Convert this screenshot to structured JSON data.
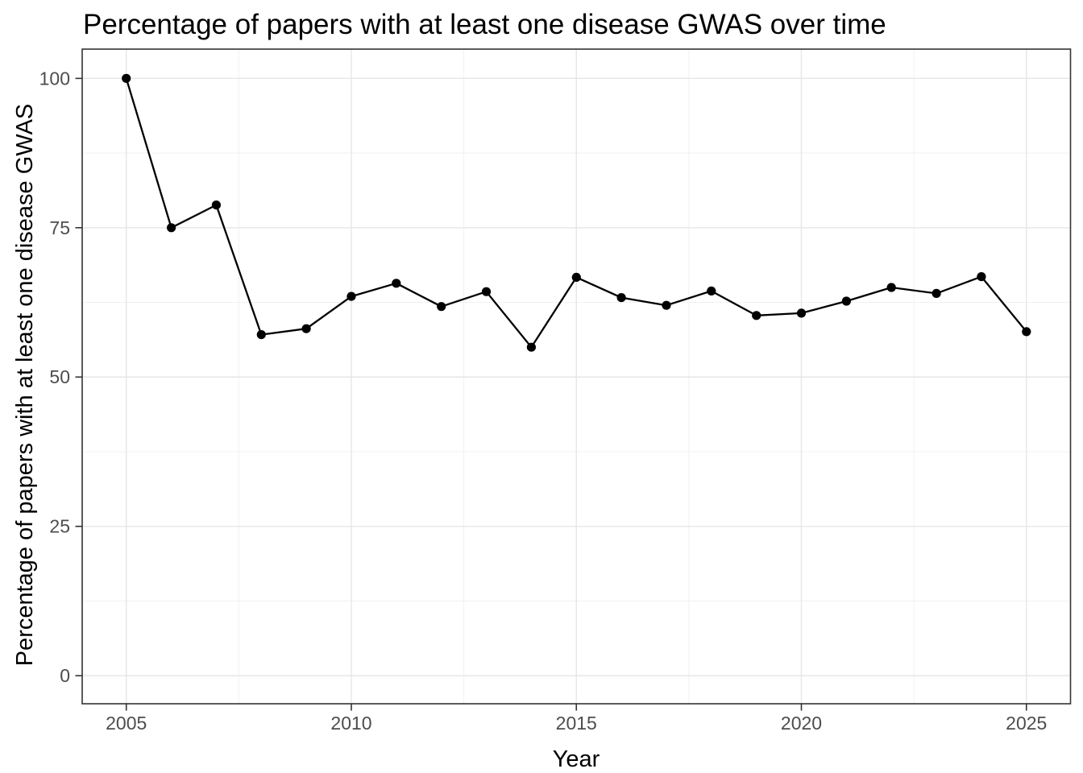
{
  "chart_data": {
    "type": "line",
    "title": "Percentage of papers with at least one disease GWAS over time",
    "xlabel": "Year",
    "ylabel": "Percentage of papers with at least one disease GWAS",
    "x": [
      2005,
      2006,
      2007,
      2008,
      2009,
      2010,
      2011,
      2012,
      2013,
      2014,
      2015,
      2016,
      2017,
      2018,
      2019,
      2020,
      2021,
      2022,
      2023,
      2024,
      2025
    ],
    "series": [
      {
        "name": "percent_papers_with_disease_gwas",
        "values": [
          100,
          75,
          78.8,
          57.1,
          58.1,
          63.5,
          65.7,
          61.8,
          64.3,
          55,
          66.7,
          63.3,
          62,
          64.4,
          60.3,
          60.7,
          62.7,
          65,
          64,
          66.8,
          57.6
        ]
      }
    ],
    "x_ticks": [
      "2005",
      "2010",
      "2015",
      "2020",
      "2025"
    ],
    "x_tick_values": [
      2005,
      2010,
      2015,
      2020,
      2025
    ],
    "y_ticks": [
      "0",
      "25",
      "50",
      "75",
      "100"
    ],
    "y_tick_values": [
      0,
      25,
      50,
      75,
      100
    ],
    "x_minor_gridlines": [
      2007.5,
      2012.5,
      2017.5,
      2022.5
    ],
    "y_minor_gridlines": [
      12.5,
      37.5,
      62.5,
      87.5
    ],
    "xlim": [
      2004.02,
      2025.98
    ],
    "ylim": [
      -4.7,
      104.9
    ],
    "grid": true,
    "legend": "none",
    "colors": {
      "line": "#000000",
      "point": "#000000",
      "panel_border": "#333333",
      "tick_mark": "#333333",
      "grid_major": "#E6E6E6",
      "grid_minor": "#F1F1F1",
      "tick_label": "#4D4D4D",
      "title_text": "#000000",
      "background": "#FFFFFF"
    }
  }
}
